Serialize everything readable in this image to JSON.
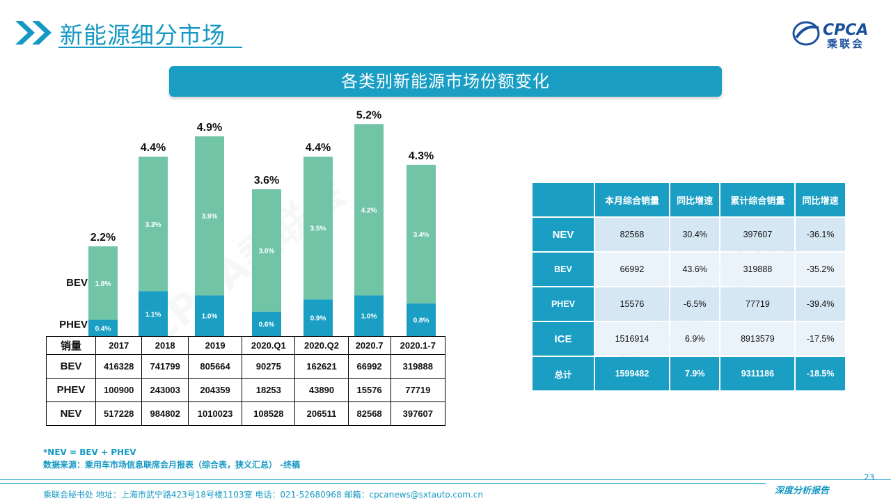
{
  "header": {
    "title": "新能源细分市场",
    "logo_text": "CPCA",
    "logo_cn": "乘联会"
  },
  "banner": {
    "title": "各类别新能源市场份额变化"
  },
  "chart_data": {
    "type": "bar",
    "stacked": true,
    "categories": [
      "2017",
      "2018",
      "2019",
      "2020.Q1",
      "2020.Q2",
      "2020.7",
      "2020.1-7"
    ],
    "series": [
      {
        "name": "PHEV",
        "values": [
          0.4,
          1.1,
          1.0,
          0.6,
          0.9,
          1.0,
          0.8
        ],
        "labels": [
          "0.4%",
          "1.1%",
          "1.0%",
          "0.6%",
          "0.9%",
          "1.0%",
          "0.8%"
        ],
        "color": "#1a9ec4"
      },
      {
        "name": "BEV",
        "values": [
          1.8,
          3.3,
          3.9,
          3.0,
          3.5,
          4.2,
          3.4
        ],
        "labels": [
          "1.8%",
          "3.3%",
          "3.9%",
          "3.0%",
          "3.5%",
          "4.2%",
          "3.4%"
        ],
        "color": "#72c4a7"
      }
    ],
    "totals": [
      2.2,
      4.4,
      4.9,
      3.6,
      4.4,
      5.2,
      4.3
    ],
    "total_labels": [
      "2.2%",
      "4.4%",
      "4.9%",
      "3.6%",
      "4.4%",
      "5.2%",
      "4.3%"
    ]
  },
  "sales_table": {
    "corner": "销量",
    "columns": [
      "2017",
      "2018",
      "2019",
      "2020.Q1",
      "2020.Q2",
      "2020.7",
      "2020.1-7"
    ],
    "rows": [
      {
        "label": "BEV",
        "values": [
          "416328",
          "741799",
          "805664",
          "90275",
          "162621",
          "66992",
          "319888"
        ]
      },
      {
        "label": "PHEV",
        "values": [
          "100900",
          "243003",
          "204359",
          "18253",
          "43890",
          "15576",
          "77719"
        ]
      },
      {
        "label": "NEV",
        "values": [
          "517228",
          "984802",
          "1010023",
          "108528",
          "206511",
          "82568",
          "397607"
        ]
      }
    ]
  },
  "monthly_table": {
    "headers": [
      "",
      "本月综合销量",
      "同比增速",
      "累计综合销量",
      "同比增速"
    ],
    "rows": [
      {
        "label": "NEV",
        "values": [
          "82568",
          "30.4%",
          "397607",
          "-36.1%"
        ]
      },
      {
        "label": "BEV",
        "values": [
          "66992",
          "43.6%",
          "319888",
          "-35.2%"
        ]
      },
      {
        "label": "PHEV",
        "values": [
          "15576",
          "-6.5%",
          "77719",
          "-39.4%"
        ]
      },
      {
        "label": "ICE",
        "values": [
          "1516914",
          "6.9%",
          "8913579",
          "-17.5%"
        ]
      }
    ],
    "total": {
      "label": "总计",
      "values": [
        "1599482",
        "7.9%",
        "9311186",
        "-18.5%"
      ]
    }
  },
  "notes": {
    "formula": "*NEV = BEV + PHEV",
    "source": "数据来源：乘用车市场信息联席会月报表（综合表，狭义汇总） -终稿"
  },
  "footer": {
    "address": "乘联会秘书处   地址：上海市武宁路423号18号楼1103室   电话：021-52680968   邮箱：cpcanews@sxtauto.com.cn",
    "report": "深度分析报告",
    "page": "23"
  },
  "colors": {
    "accent": "#1598c3",
    "phev": "#1a9ec4",
    "bev": "#72c4a7"
  }
}
